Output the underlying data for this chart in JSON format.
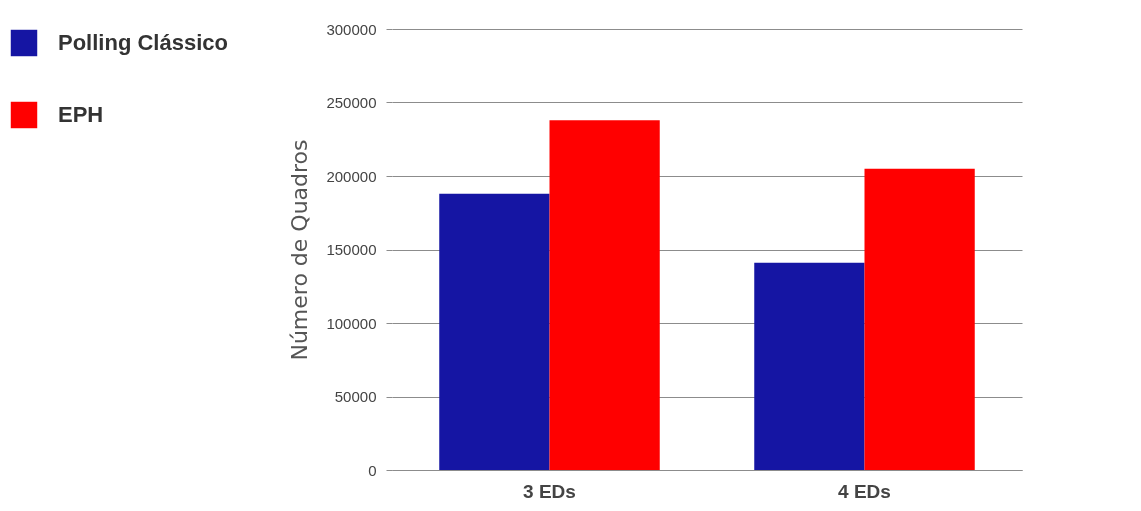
{
  "chart_data": {
    "type": "bar",
    "ylabel": "Número de  Quadros",
    "categories": [
      "3 EDs",
      "4 EDs"
    ],
    "series": [
      {
        "name": "Polling Clássico",
        "color": "#1515a3",
        "values": [
          188000,
          141000
        ]
      },
      {
        "name": "EPH",
        "color": "#ff0000",
        "values": [
          238000,
          205000
        ]
      }
    ],
    "ylim": [
      0,
      300000
    ],
    "yticks": [
      0,
      50000,
      100000,
      150000,
      200000,
      250000,
      300000
    ],
    "grid": "y",
    "legend": "left"
  }
}
